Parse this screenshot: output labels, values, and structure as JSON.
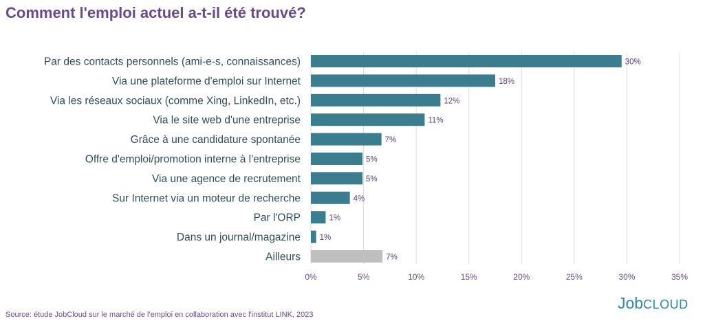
{
  "chart_data": {
    "type": "bar",
    "orientation": "horizontal",
    "title": "Comment l'emploi actuel a-t-il été trouvé?",
    "categories": [
      "Par des contacts personnels (ami-e-s, connaissances)",
      "Via une plateforme d'emploi sur Internet",
      "Via les réseaux sociaux (comme Xing, LinkedIn, etc.)",
      "Via le site web d'une entreprise",
      "Grâce à une candidature spontanée",
      "Offre d'emploi/promotion interne à l'entreprise",
      "Via une agence de recrutement",
      "Sur Internet via un moteur de recherche",
      "Par l'ORP",
      "Dans un journal/magazine",
      "Ailleurs"
    ],
    "values": [
      29.5,
      17.5,
      12.3,
      10.8,
      6.7,
      4.9,
      4.9,
      3.7,
      1.4,
      0.5,
      6.8
    ],
    "value_labels": [
      "30%",
      "18%",
      "12%",
      "11%",
      "7%",
      "5%",
      "5%",
      "4%",
      "1%",
      "1%",
      "7%"
    ],
    "xlim": [
      0,
      35
    ],
    "xticks": [
      0,
      5,
      10,
      15,
      20,
      25,
      30,
      35
    ],
    "xtick_labels": [
      "0%",
      "5%",
      "10%",
      "15%",
      "20%",
      "25%",
      "30%",
      "35%"
    ],
    "grid": "vertical",
    "bar_color": "#3b7c8f",
    "highlight_color": "#bfbfbf",
    "highlight_index": 10
  },
  "footer": {
    "source": "Source: étude JobCloud sur le marché de l'emploi en collaboration avec l'institut LINK, 2023",
    "logo_job": "Job",
    "logo_cloud": "CLOUD"
  }
}
